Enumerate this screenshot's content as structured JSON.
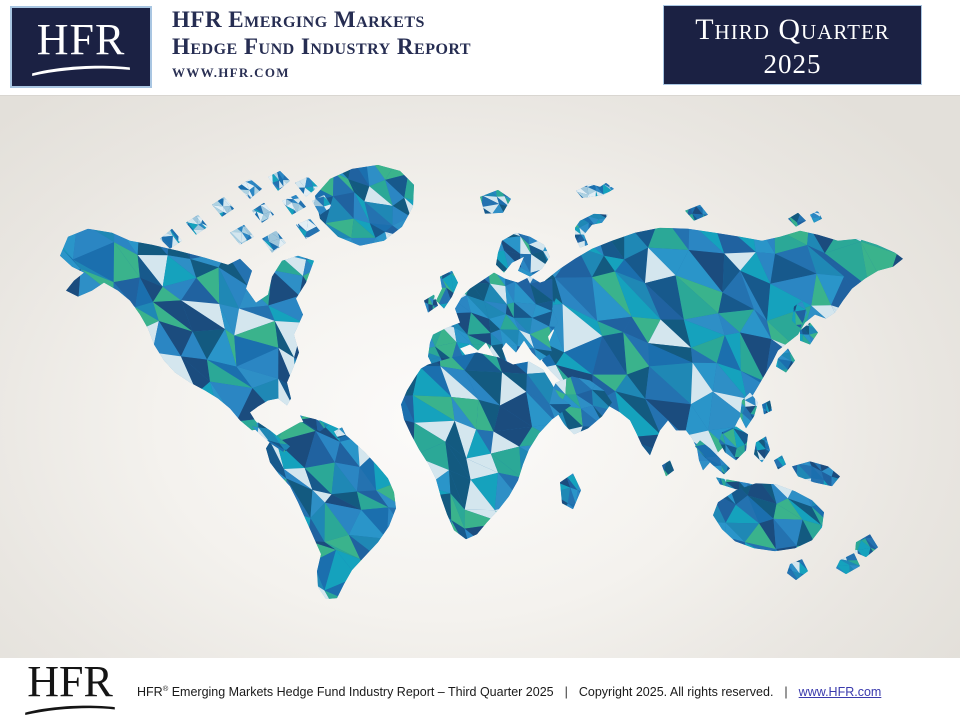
{
  "header": {
    "logo_text": "HFR",
    "title_line1": "HFR Emerging Markets",
    "title_line2": "Hedge Fund Industry Report",
    "website": "WWW.HFR.COM",
    "quarter_line1": "Third Quarter",
    "quarter_line2": "2025"
  },
  "footer": {
    "logo_text": "HFR",
    "report_name": "HFR",
    "registered": "®",
    "report_rest": " Emerging Markets Hedge Fund Industry Report – Third Quarter 2025",
    "separator": "|",
    "copyright": "Copyright 2025. All rights reserved.",
    "link": "www.HFR.com"
  },
  "map": {
    "label": "Low-poly polygonal world map illustration",
    "palette": [
      "#2b86c3",
      "#2472b0",
      "#2a95c9",
      "#17598c",
      "#1f88b5",
      "#15a2bd",
      "#2ba897",
      "#3ab38c",
      "#1b6fae",
      "#135a80",
      "#2e8fc6",
      "#2062a0",
      "#d4e6ee",
      "#1b4c7e"
    ],
    "palette_light": [
      "#2b86c3",
      "#9fc6db",
      "#d4e6ee",
      "#2472b0",
      "#15a2bd",
      "#aed2e2",
      "#1b6fae",
      "#e2eef4"
    ],
    "background_center": "#fcfbfa",
    "background_edge": "#e3e0da"
  },
  "colors": {
    "navy_box": "#1b2143",
    "box_border": "#a9c6e2",
    "title_text": "#262d52",
    "footer_text": "#1a1a1a",
    "link": "#3a3aad"
  }
}
